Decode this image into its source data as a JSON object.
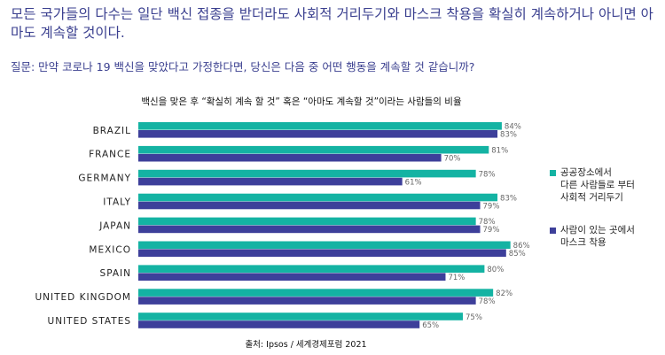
{
  "headline": "모든 국가들의 다수는 일단 백신 접종을 받더라도 사회적 거리두기와 마스크 착용을 확실히 계속하거나 아니면 아마도 계속할 것이다.",
  "question": "질문: 만약 코로나 19 백신을 맞았다고 가정한다면, 당신은 다음 중 어떤 행동을 계속할 것 같습니까?",
  "source": "출처: Ipsos / 세계경제포럼 2021",
  "colors": {
    "teal": "#14b3a3",
    "navy": "#3d3f9a"
  },
  "chart_data": {
    "type": "bar",
    "orientation": "horizontal",
    "title": "백신을 맞은 후 “확실히 계속 할 것” 혹은 “아마도 계속할 것”이라는 사람들의 비율",
    "categories": [
      "BRAZIL",
      "FRANCE",
      "GERMANY",
      "ITALY",
      "JAPAN",
      "MEXICO",
      "SPAIN",
      "UNITED KINGDOM",
      "UNITED STATES"
    ],
    "series": [
      {
        "name": "공공장소에서\n다른 사람들로 부터\n사회적 거리두기",
        "color": "#14b3a3",
        "values": [
          84,
          81,
          78,
          83,
          78,
          86,
          80,
          82,
          75
        ]
      },
      {
        "name": "사람이 있는 곳에서\n마스크 착용",
        "color": "#3d3f9a",
        "values": [
          83,
          70,
          61,
          79,
          79,
          85,
          71,
          78,
          65
        ]
      }
    ],
    "value_suffix": "%",
    "xlim": [
      0,
      100
    ],
    "grid": false,
    "legend_position": "right"
  }
}
